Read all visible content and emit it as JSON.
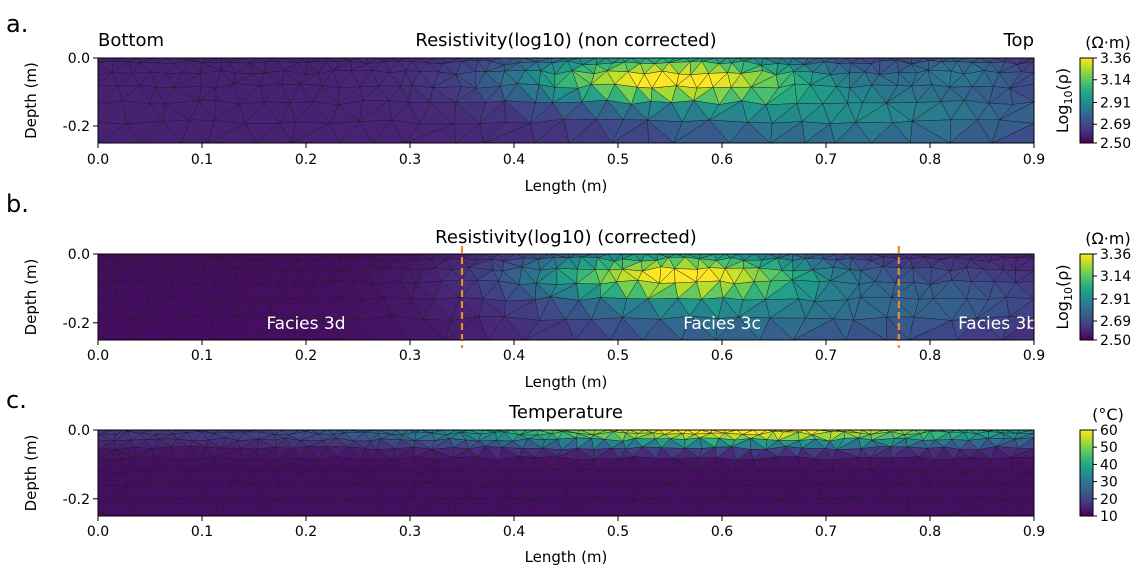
{
  "chart_data": [
    {
      "type": "heatmap",
      "panel_letter": "a.",
      "title": "Resistivity(log10) (non corrected)",
      "corner_labels": {
        "left": "Bottom",
        "right": "Top"
      },
      "xlabel": "Length (m)",
      "ylabel": "Depth (m)",
      "xlim": [
        0.0,
        0.9
      ],
      "ylim": [
        -0.25,
        0.0
      ],
      "xticks": [
        "0.0",
        "0.1",
        "0.2",
        "0.3",
        "0.4",
        "0.5",
        "0.6",
        "0.7",
        "0.8",
        "0.9"
      ],
      "yticks": [
        "0.0",
        "-0.2"
      ],
      "colorbar": {
        "unit": "(Ω·m)",
        "label_main": "Log",
        "label_sub": "10",
        "label_tail": "(ρ)",
        "min": 2.5,
        "max": 3.36,
        "ticks": [
          "2.50",
          "2.69",
          "2.91",
          "3.14",
          "3.36"
        ],
        "colormap": "viridis"
      },
      "field": {
        "background": 2.58,
        "blobs": [
          {
            "x": 0.55,
            "y": -0.06,
            "sx": 0.14,
            "sy": 0.07,
            "amp": 0.78
          },
          {
            "x": 0.72,
            "y": -0.17,
            "sx": 0.22,
            "sy": 0.1,
            "amp": 0.32
          },
          {
            "x": 0.83,
            "y": -0.04,
            "sx": 0.06,
            "sy": 0.05,
            "amp": 0.2
          }
        ]
      },
      "vlines": [],
      "annotations": []
    },
    {
      "type": "heatmap",
      "panel_letter": "b.",
      "title": "Resistivity(log10) (corrected)",
      "xlabel": "Length (m)",
      "ylabel": "Depth (m)",
      "xlim": [
        0.0,
        0.9
      ],
      "ylim": [
        -0.25,
        0.0
      ],
      "xticks": [
        "0.0",
        "0.1",
        "0.2",
        "0.3",
        "0.4",
        "0.5",
        "0.6",
        "0.7",
        "0.8",
        "0.9"
      ],
      "yticks": [
        "0.0",
        "-0.2"
      ],
      "colorbar": {
        "unit": "(Ω·m)",
        "label_main": "Log",
        "label_sub": "10",
        "label_tail": "(ρ)",
        "min": 2.5,
        "max": 3.36,
        "ticks": [
          "2.50",
          "2.69",
          "2.91",
          "3.14",
          "3.36"
        ],
        "colormap": "viridis"
      },
      "field": {
        "background": 2.53,
        "blobs": [
          {
            "x": 0.56,
            "y": -0.06,
            "sx": 0.14,
            "sy": 0.07,
            "amp": 0.8
          },
          {
            "x": 0.62,
            "y": -0.18,
            "sx": 0.2,
            "sy": 0.1,
            "amp": 0.3
          },
          {
            "x": 0.84,
            "y": -0.12,
            "sx": 0.1,
            "sy": 0.12,
            "amp": 0.14
          }
        ]
      },
      "vlines": [
        0.35,
        0.77
      ],
      "annotations": [
        {
          "text": "Facies 3d",
          "x": 0.2,
          "y": -0.2
        },
        {
          "text": "Facies 3c",
          "x": 0.6,
          "y": -0.2
        },
        {
          "text": "Facies 3b",
          "x": 0.865,
          "y": -0.2
        }
      ]
    },
    {
      "type": "heatmap",
      "panel_letter": "c.",
      "title": "Temperature",
      "xlabel": "Length (m)",
      "ylabel": "Depth (m)",
      "xlim": [
        0.0,
        0.9
      ],
      "ylim": [
        -0.25,
        0.0
      ],
      "xticks": [
        "0.0",
        "0.1",
        "0.2",
        "0.3",
        "0.4",
        "0.5",
        "0.6",
        "0.7",
        "0.8",
        "0.9"
      ],
      "yticks": [
        "0.0",
        "-0.2"
      ],
      "colorbar": {
        "unit": "(°C)",
        "label_main": "",
        "label_sub": "",
        "label_tail": "",
        "min": 10,
        "max": 60,
        "ticks": [
          "10",
          "20",
          "30",
          "40",
          "50",
          "60"
        ],
        "colormap": "viridis"
      },
      "field": {
        "background": 12,
        "surface_band": {
          "depth": 0.045,
          "x_start": 0.0,
          "x_end": 0.9,
          "x_peak": 0.62,
          "amp_min": 6,
          "amp_max": 50
        }
      },
      "vlines": [],
      "annotations": []
    }
  ]
}
